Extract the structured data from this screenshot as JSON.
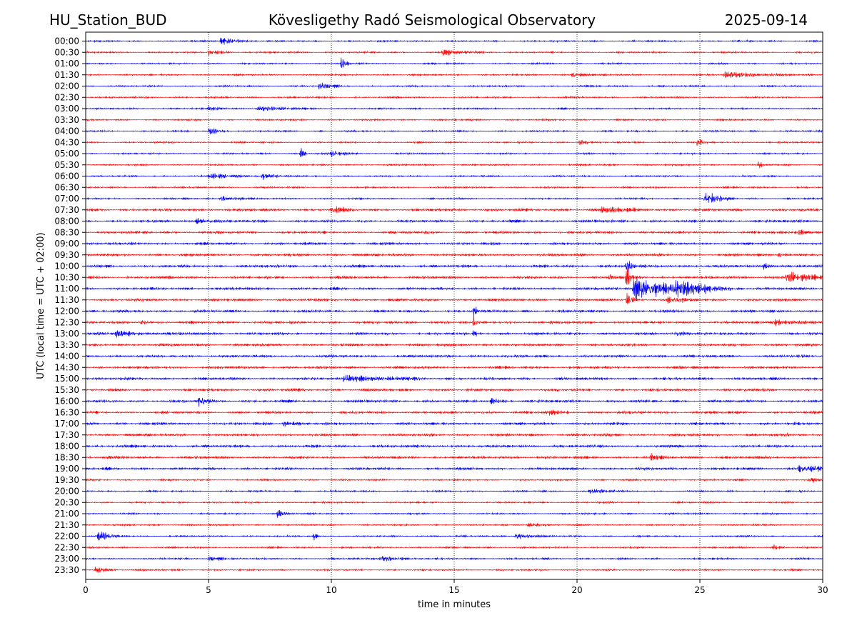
{
  "header": {
    "station": "HU_Station_BUD",
    "observatory": "Kövesligethy Radó Seismological Observatory",
    "date": "2025-09-14"
  },
  "chart_data": {
    "type": "line",
    "title": "Kövesligethy Radó Seismological Observatory",
    "xlabel": "time in minutes",
    "ylabel": "UTC (local time = UTC + 02:00)",
    "xlim": [
      0,
      30
    ],
    "xticks": [
      0,
      5,
      10,
      15,
      20,
      25,
      30
    ],
    "grid": "vertical-dotted",
    "colors": {
      "even": "#0000ff",
      "odd": "#ff0000"
    },
    "rows": [
      "00:00",
      "00:30",
      "01:00",
      "01:30",
      "02:00",
      "02:30",
      "03:00",
      "03:30",
      "04:00",
      "04:30",
      "05:00",
      "05:30",
      "06:00",
      "06:30",
      "07:00",
      "07:30",
      "08:00",
      "08:30",
      "09:00",
      "09:30",
      "10:00",
      "10:30",
      "11:00",
      "11:30",
      "12:00",
      "12:30",
      "13:00",
      "13:30",
      "14:00",
      "14:30",
      "15:00",
      "15:30",
      "16:00",
      "16:30",
      "17:00",
      "17:30",
      "18:00",
      "18:30",
      "19:00",
      "19:30",
      "20:00",
      "20:30",
      "21:00",
      "21:30",
      "22:00",
      "22:30",
      "23:00",
      "23:30"
    ],
    "events": [
      {
        "row": "00:00",
        "t": 5.5,
        "amp": 0.6,
        "dur": 1.0
      },
      {
        "row": "00:30",
        "t": 5.0,
        "amp": 0.6,
        "dur": 0.6
      },
      {
        "row": "00:30",
        "t": 14.5,
        "amp": 0.5,
        "dur": 1.5
      },
      {
        "row": "01:00",
        "t": 10.4,
        "amp": 0.9,
        "dur": 0.3
      },
      {
        "row": "01:30",
        "t": 26.0,
        "amp": 0.6,
        "dur": 2.0
      },
      {
        "row": "01:30",
        "t": 19.8,
        "amp": 0.5,
        "dur": 0.6
      },
      {
        "row": "02:00",
        "t": 9.5,
        "amp": 0.5,
        "dur": 0.8
      },
      {
        "row": "03:00",
        "t": 5.0,
        "amp": 0.5,
        "dur": 0.5
      },
      {
        "row": "03:00",
        "t": 7.0,
        "amp": 0.4,
        "dur": 1.5
      },
      {
        "row": "04:00",
        "t": 5.0,
        "amp": 0.6,
        "dur": 0.6
      },
      {
        "row": "04:30",
        "t": 24.9,
        "amp": 1.3,
        "dur": 0.2
      },
      {
        "row": "04:30",
        "t": 20.1,
        "amp": 0.5,
        "dur": 0.4
      },
      {
        "row": "05:00",
        "t": 8.75,
        "amp": 1.3,
        "dur": 0.15
      },
      {
        "row": "05:00",
        "t": 10.0,
        "amp": 0.5,
        "dur": 0.8
      },
      {
        "row": "05:30",
        "t": 27.4,
        "amp": 1.0,
        "dur": 0.15
      },
      {
        "row": "06:00",
        "t": 5.0,
        "amp": 0.5,
        "dur": 1.5
      },
      {
        "row": "06:00",
        "t": 7.2,
        "amp": 0.5,
        "dur": 0.8
      },
      {
        "row": "07:00",
        "t": 25.2,
        "amp": 1.2,
        "dur": 0.8
      },
      {
        "row": "07:00",
        "t": 5.5,
        "amp": 0.4,
        "dur": 1.0
      },
      {
        "row": "07:30",
        "t": 10.0,
        "amp": 0.6,
        "dur": 0.6
      },
      {
        "row": "07:30",
        "t": 21.0,
        "amp": 0.5,
        "dur": 1.5
      },
      {
        "row": "08:00",
        "t": 4.5,
        "amp": 0.5,
        "dur": 0.8
      },
      {
        "row": "08:30",
        "t": 29.0,
        "amp": 0.6,
        "dur": 0.6
      },
      {
        "row": "09:30",
        "t": 28.2,
        "amp": 0.6,
        "dur": 0.4
      },
      {
        "row": "10:00",
        "t": 22.0,
        "amp": 1.8,
        "dur": 0.25
      },
      {
        "row": "10:00",
        "t": 27.6,
        "amp": 0.5,
        "dur": 0.4
      },
      {
        "row": "10:30",
        "t": 22.0,
        "amp": 1.8,
        "dur": 0.3
      },
      {
        "row": "10:30",
        "t": 28.5,
        "amp": 0.9,
        "dur": 1.5
      },
      {
        "row": "10:30",
        "t": 21.3,
        "amp": 0.5,
        "dur": 0.4
      },
      {
        "row": "11:00",
        "t": 22.3,
        "amp": 2.2,
        "dur": 2.5
      },
      {
        "row": "11:00",
        "t": 24.0,
        "amp": 0.8,
        "dur": 2.0
      },
      {
        "row": "11:30",
        "t": 22.0,
        "amp": 1.4,
        "dur": 0.3
      },
      {
        "row": "11:30",
        "t": 23.7,
        "amp": 0.6,
        "dur": 0.8
      },
      {
        "row": "12:00",
        "t": 15.8,
        "amp": 1.8,
        "dur": 0.1
      },
      {
        "row": "12:30",
        "t": 15.8,
        "amp": 1.5,
        "dur": 0.1
      },
      {
        "row": "12:30",
        "t": 2.2,
        "amp": 0.6,
        "dur": 0.3
      },
      {
        "row": "12:30",
        "t": 28.0,
        "amp": 0.5,
        "dur": 1.5
      },
      {
        "row": "13:00",
        "t": 15.8,
        "amp": 1.6,
        "dur": 0.1
      },
      {
        "row": "13:00",
        "t": 1.2,
        "amp": 0.5,
        "dur": 1.5
      },
      {
        "row": "13:00",
        "t": 24.0,
        "amp": 0.4,
        "dur": 1.0
      },
      {
        "row": "15:00",
        "t": 10.5,
        "amp": 0.7,
        "dur": 2.2
      },
      {
        "row": "16:00",
        "t": 4.6,
        "amp": 0.9,
        "dur": 0.5
      },
      {
        "row": "16:00",
        "t": 16.5,
        "amp": 0.5,
        "dur": 0.6
      },
      {
        "row": "16:30",
        "t": 18.8,
        "amp": 0.5,
        "dur": 0.6
      },
      {
        "row": "17:00",
        "t": 8.0,
        "amp": 0.4,
        "dur": 1.0
      },
      {
        "row": "18:30",
        "t": 23.0,
        "amp": 0.5,
        "dur": 0.6
      },
      {
        "row": "19:00",
        "t": 29.0,
        "amp": 0.6,
        "dur": 1.5
      },
      {
        "row": "19:30",
        "t": 29.5,
        "amp": 0.5,
        "dur": 0.5
      },
      {
        "row": "20:00",
        "t": 20.5,
        "amp": 0.5,
        "dur": 1.0
      },
      {
        "row": "21:00",
        "t": 7.8,
        "amp": 0.6,
        "dur": 0.5
      },
      {
        "row": "21:30",
        "t": 18.0,
        "amp": 0.5,
        "dur": 0.6
      },
      {
        "row": "22:00",
        "t": 0.5,
        "amp": 0.8,
        "dur": 0.8
      },
      {
        "row": "22:00",
        "t": 9.3,
        "amp": 1.0,
        "dur": 0.1
      },
      {
        "row": "22:00",
        "t": 17.5,
        "amp": 0.6,
        "dur": 1.0
      },
      {
        "row": "22:30",
        "t": 28.0,
        "amp": 0.6,
        "dur": 0.4
      },
      {
        "row": "23:00",
        "t": 12.0,
        "amp": 0.5,
        "dur": 1.2
      },
      {
        "row": "23:00",
        "t": 5.0,
        "amp": 0.4,
        "dur": 1.0
      },
      {
        "row": "23:30",
        "t": 0.4,
        "amp": 0.6,
        "dur": 0.6
      }
    ]
  }
}
